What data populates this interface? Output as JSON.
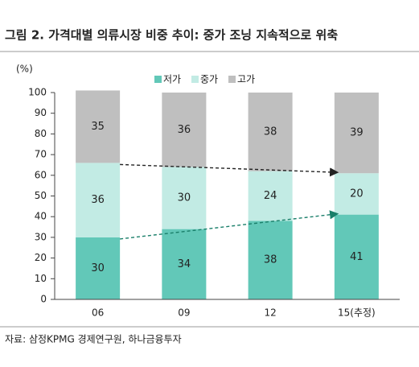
{
  "chart_data": {
    "type": "stacked-bar",
    "title": "그림 2. 가격대별 의류시장 비중 추이: 중가 조닝 지속적으로 위축",
    "y_label": "(%)",
    "categories": [
      "06",
      "09",
      "12",
      "15(추정)"
    ],
    "series": [
      {
        "name": "저가",
        "color": "#62c8b8",
        "values": [
          30,
          34,
          38,
          41
        ]
      },
      {
        "name": "중가",
        "color": "#c2ebe4",
        "values": [
          36,
          30,
          24,
          20
        ]
      },
      {
        "name": "고가",
        "color": "#bfbfbf",
        "values": [
          35,
          36,
          38,
          39
        ]
      }
    ],
    "ylim": [
      0,
      100
    ],
    "yticks": [
      0,
      10,
      20,
      30,
      40,
      50,
      60,
      70,
      80,
      90,
      100
    ],
    "source": "자료: 삼정KPMG 경제연구원, 하나금융투자"
  }
}
